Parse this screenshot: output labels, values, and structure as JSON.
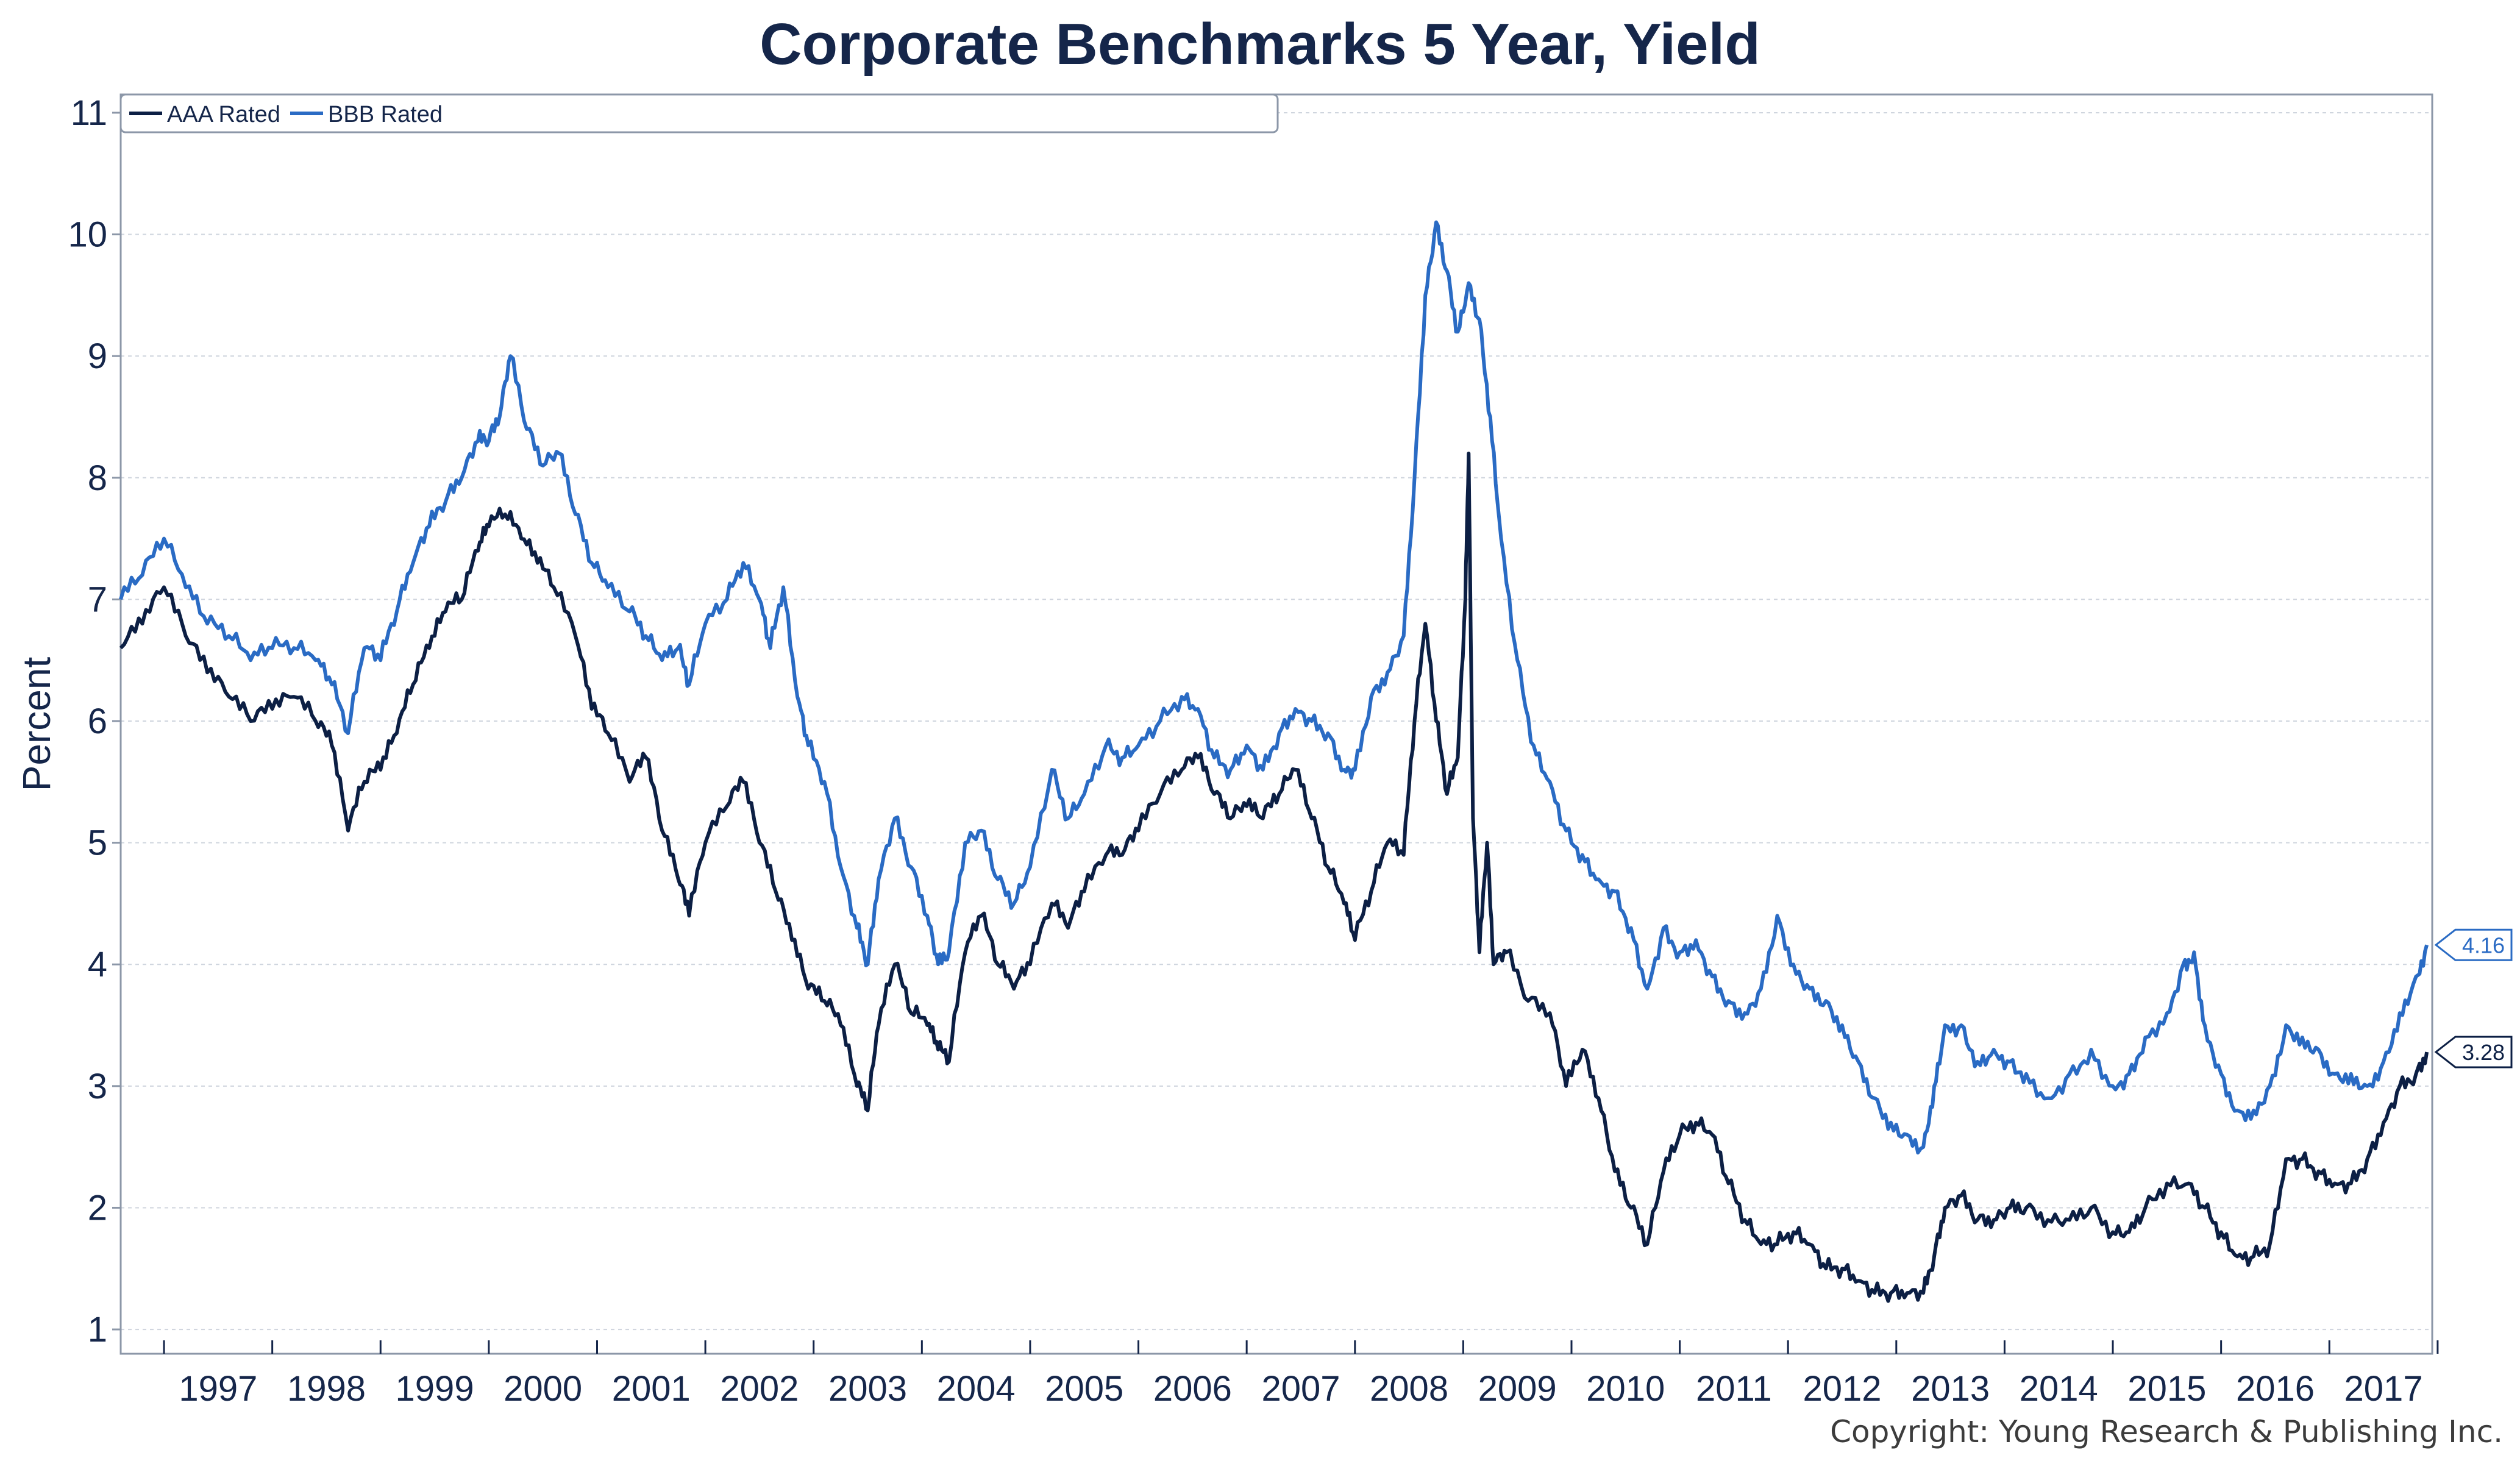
{
  "chart_data": {
    "type": "line",
    "title": "Corporate Benchmarks 5 Year, Yield",
    "ylabel": "Percent",
    "xlabel": "",
    "ylim": [
      1,
      11
    ],
    "xlim": [
      1996.6,
      2017.95
    ],
    "y_ticks": [
      1,
      2,
      3,
      4,
      5,
      6,
      7,
      8,
      9,
      10,
      11
    ],
    "x_tick_labels": [
      "1997",
      "1998",
      "1999",
      "2000",
      "2001",
      "2002",
      "2003",
      "2004",
      "2005",
      "2006",
      "2007",
      "2008",
      "2009",
      "2010",
      "2011",
      "2012",
      "2013",
      "2014",
      "2015",
      "2016",
      "2017"
    ],
    "grid": "horizontal dotted",
    "legend": "top-left",
    "series": [
      {
        "name": "AAA Rated",
        "color": "#0c1f44",
        "end_label": "3.28",
        "points": [
          [
            1996.6,
            6.6
          ],
          [
            1996.8,
            6.8
          ],
          [
            1997.0,
            7.1
          ],
          [
            1997.2,
            6.7
          ],
          [
            1997.4,
            6.4
          ],
          [
            1997.6,
            6.2
          ],
          [
            1997.8,
            6.0
          ],
          [
            1998.0,
            6.1
          ],
          [
            1998.2,
            6.2
          ],
          [
            1998.4,
            6.0
          ],
          [
            1998.55,
            5.8
          ],
          [
            1998.7,
            5.1
          ],
          [
            1998.85,
            5.5
          ],
          [
            1999.0,
            5.6
          ],
          [
            1999.15,
            5.9
          ],
          [
            1999.3,
            6.3
          ],
          [
            1999.45,
            6.6
          ],
          [
            1999.6,
            6.9
          ],
          [
            1999.75,
            7.0
          ],
          [
            1999.9,
            7.4
          ],
          [
            2000.0,
            7.6
          ],
          [
            2000.15,
            7.7
          ],
          [
            2000.3,
            7.5
          ],
          [
            2000.45,
            7.3
          ],
          [
            2000.6,
            7.1
          ],
          [
            2000.8,
            6.7
          ],
          [
            2000.95,
            6.1
          ],
          [
            2001.1,
            5.9
          ],
          [
            2001.3,
            5.5
          ],
          [
            2001.45,
            5.7
          ],
          [
            2001.6,
            5.1
          ],
          [
            2001.75,
            4.7
          ],
          [
            2001.85,
            4.4
          ],
          [
            2002.0,
            5.0
          ],
          [
            2002.2,
            5.3
          ],
          [
            2002.35,
            5.5
          ],
          [
            2002.5,
            5.0
          ],
          [
            2002.65,
            4.6
          ],
          [
            2002.8,
            4.2
          ],
          [
            2002.95,
            3.8
          ],
          [
            2003.1,
            3.7
          ],
          [
            2003.25,
            3.5
          ],
          [
            2003.4,
            3.0
          ],
          [
            2003.5,
            2.8
          ],
          [
            2003.6,
            3.5
          ],
          [
            2003.75,
            4.0
          ],
          [
            2003.9,
            3.6
          ],
          [
            2004.05,
            3.5
          ],
          [
            2004.15,
            3.3
          ],
          [
            2004.25,
            3.2
          ],
          [
            2004.4,
            4.1
          ],
          [
            2004.55,
            4.4
          ],
          [
            2004.7,
            4.0
          ],
          [
            2004.85,
            3.8
          ],
          [
            2005.0,
            4.0
          ],
          [
            2005.2,
            4.5
          ],
          [
            2005.35,
            4.3
          ],
          [
            2005.5,
            4.6
          ],
          [
            2005.7,
            4.9
          ],
          [
            2005.85,
            4.9
          ],
          [
            2006.0,
            5.1
          ],
          [
            2006.2,
            5.4
          ],
          [
            2006.4,
            5.6
          ],
          [
            2006.55,
            5.7
          ],
          [
            2006.7,
            5.4
          ],
          [
            2006.85,
            5.2
          ],
          [
            2007.0,
            5.3
          ],
          [
            2007.15,
            5.2
          ],
          [
            2007.3,
            5.4
          ],
          [
            2007.45,
            5.6
          ],
          [
            2007.6,
            5.2
          ],
          [
            2007.75,
            4.8
          ],
          [
            2007.9,
            4.5
          ],
          [
            2008.0,
            4.2
          ],
          [
            2008.15,
            4.6
          ],
          [
            2008.3,
            5.0
          ],
          [
            2008.45,
            4.9
          ],
          [
            2008.55,
            6.0
          ],
          [
            2008.65,
            6.8
          ],
          [
            2008.75,
            6.0
          ],
          [
            2008.85,
            5.4
          ],
          [
            2008.95,
            5.7
          ],
          [
            2009.02,
            7.0
          ],
          [
            2009.05,
            8.2
          ],
          [
            2009.09,
            5.2
          ],
          [
            2009.15,
            4.1
          ],
          [
            2009.22,
            5.0
          ],
          [
            2009.28,
            4.0
          ],
          [
            2009.4,
            4.1
          ],
          [
            2009.6,
            3.7
          ],
          [
            2009.8,
            3.6
          ],
          [
            2009.95,
            3.0
          ],
          [
            2010.1,
            3.3
          ],
          [
            2010.25,
            2.9
          ],
          [
            2010.4,
            2.3
          ],
          [
            2010.55,
            2.0
          ],
          [
            2010.7,
            1.7
          ],
          [
            2010.85,
            2.3
          ],
          [
            2011.0,
            2.6
          ],
          [
            2011.15,
            2.7
          ],
          [
            2011.3,
            2.6
          ],
          [
            2011.45,
            2.2
          ],
          [
            2011.6,
            1.9
          ],
          [
            2011.75,
            1.7
          ],
          [
            2011.9,
            1.7
          ],
          [
            2012.05,
            1.8
          ],
          [
            2012.2,
            1.7
          ],
          [
            2012.35,
            1.5
          ],
          [
            2012.5,
            1.5
          ],
          [
            2012.65,
            1.4
          ],
          [
            2012.8,
            1.3
          ],
          [
            2012.95,
            1.3
          ],
          [
            2013.1,
            1.3
          ],
          [
            2013.25,
            1.3
          ],
          [
            2013.35,
            1.6
          ],
          [
            2013.45,
            2.0
          ],
          [
            2013.6,
            2.1
          ],
          [
            2013.75,
            1.9
          ],
          [
            2013.9,
            1.9
          ],
          [
            2014.05,
            2.0
          ],
          [
            2014.2,
            2.0
          ],
          [
            2014.4,
            1.9
          ],
          [
            2014.6,
            1.9
          ],
          [
            2014.8,
            2.0
          ],
          [
            2015.0,
            1.8
          ],
          [
            2015.15,
            1.8
          ],
          [
            2015.3,
            2.0
          ],
          [
            2015.5,
            2.2
          ],
          [
            2015.7,
            2.2
          ],
          [
            2015.85,
            2.0
          ],
          [
            2016.0,
            1.8
          ],
          [
            2016.15,
            1.6
          ],
          [
            2016.3,
            1.6
          ],
          [
            2016.45,
            1.7
          ],
          [
            2016.6,
            2.4
          ],
          [
            2016.75,
            2.4
          ],
          [
            2016.9,
            2.3
          ],
          [
            2017.05,
            2.2
          ],
          [
            2017.2,
            2.2
          ],
          [
            2017.35,
            2.4
          ],
          [
            2017.5,
            2.7
          ],
          [
            2017.65,
            3.0
          ],
          [
            2017.8,
            3.1
          ],
          [
            2017.9,
            3.28
          ]
        ]
      },
      {
        "name": "BBB Rated",
        "color": "#2a6bc4",
        "end_label": "4.16",
        "points": [
          [
            1996.6,
            7.0
          ],
          [
            1996.8,
            7.2
          ],
          [
            1997.0,
            7.5
          ],
          [
            1997.2,
            7.1
          ],
          [
            1997.4,
            6.8
          ],
          [
            1997.6,
            6.7
          ],
          [
            1997.8,
            6.5
          ],
          [
            1998.0,
            6.6
          ],
          [
            1998.2,
            6.6
          ],
          [
            1998.4,
            6.5
          ],
          [
            1998.55,
            6.3
          ],
          [
            1998.7,
            5.9
          ],
          [
            1998.85,
            6.6
          ],
          [
            1999.0,
            6.5
          ],
          [
            1999.15,
            6.9
          ],
          [
            1999.3,
            7.3
          ],
          [
            1999.45,
            7.6
          ],
          [
            1999.6,
            7.8
          ],
          [
            1999.75,
            8.0
          ],
          [
            1999.9,
            8.3
          ],
          [
            2000.0,
            8.3
          ],
          [
            2000.1,
            8.5
          ],
          [
            2000.2,
            9.0
          ],
          [
            2000.35,
            8.4
          ],
          [
            2000.5,
            8.1
          ],
          [
            2000.65,
            8.2
          ],
          [
            2000.8,
            7.7
          ],
          [
            2000.95,
            7.3
          ],
          [
            2001.1,
            7.1
          ],
          [
            2001.3,
            6.9
          ],
          [
            2001.45,
            6.7
          ],
          [
            2001.6,
            6.5
          ],
          [
            2001.75,
            6.6
          ],
          [
            2001.85,
            6.3
          ],
          [
            2002.0,
            6.8
          ],
          [
            2002.2,
            7.0
          ],
          [
            2002.35,
            7.3
          ],
          [
            2002.5,
            7.0
          ],
          [
            2002.6,
            6.6
          ],
          [
            2002.72,
            7.1
          ],
          [
            2002.85,
            6.2
          ],
          [
            2002.95,
            5.8
          ],
          [
            2003.1,
            5.5
          ],
          [
            2003.25,
            4.8
          ],
          [
            2003.4,
            4.3
          ],
          [
            2003.5,
            4.0
          ],
          [
            2003.6,
            4.7
          ],
          [
            2003.75,
            5.2
          ],
          [
            2003.9,
            4.8
          ],
          [
            2004.05,
            4.4
          ],
          [
            2004.15,
            4.0
          ],
          [
            2004.25,
            4.1
          ],
          [
            2004.4,
            5.0
          ],
          [
            2004.55,
            5.1
          ],
          [
            2004.7,
            4.7
          ],
          [
            2004.85,
            4.5
          ],
          [
            2005.0,
            4.8
          ],
          [
            2005.2,
            5.6
          ],
          [
            2005.35,
            5.2
          ],
          [
            2005.5,
            5.4
          ],
          [
            2005.7,
            5.8
          ],
          [
            2005.85,
            5.7
          ],
          [
            2006.0,
            5.8
          ],
          [
            2006.2,
            6.0
          ],
          [
            2006.4,
            6.2
          ],
          [
            2006.55,
            6.1
          ],
          [
            2006.7,
            5.7
          ],
          [
            2006.85,
            5.6
          ],
          [
            2007.0,
            5.8
          ],
          [
            2007.15,
            5.6
          ],
          [
            2007.3,
            5.9
          ],
          [
            2007.45,
            6.1
          ],
          [
            2007.6,
            6.0
          ],
          [
            2007.75,
            5.9
          ],
          [
            2007.9,
            5.6
          ],
          [
            2008.0,
            5.6
          ],
          [
            2008.15,
            6.2
          ],
          [
            2008.3,
            6.4
          ],
          [
            2008.45,
            6.7
          ],
          [
            2008.55,
            8.0
          ],
          [
            2008.65,
            9.5
          ],
          [
            2008.75,
            10.1
          ],
          [
            2008.85,
            9.7
          ],
          [
            2008.95,
            9.2
          ],
          [
            2009.05,
            9.6
          ],
          [
            2009.15,
            9.3
          ],
          [
            2009.25,
            8.5
          ],
          [
            2009.35,
            7.5
          ],
          [
            2009.5,
            6.5
          ],
          [
            2009.65,
            5.8
          ],
          [
            2009.8,
            5.5
          ],
          [
            2009.95,
            5.1
          ],
          [
            2010.1,
            4.9
          ],
          [
            2010.25,
            4.7
          ],
          [
            2010.4,
            4.6
          ],
          [
            2010.55,
            4.3
          ],
          [
            2010.7,
            3.8
          ],
          [
            2010.85,
            4.3
          ],
          [
            2011.0,
            4.1
          ],
          [
            2011.15,
            4.2
          ],
          [
            2011.3,
            3.9
          ],
          [
            2011.45,
            3.7
          ],
          [
            2011.6,
            3.6
          ],
          [
            2011.75,
            3.8
          ],
          [
            2011.9,
            4.4
          ],
          [
            2012.05,
            4.0
          ],
          [
            2012.2,
            3.8
          ],
          [
            2012.35,
            3.7
          ],
          [
            2012.5,
            3.5
          ],
          [
            2012.65,
            3.2
          ],
          [
            2012.8,
            2.9
          ],
          [
            2012.95,
            2.7
          ],
          [
            2013.1,
            2.6
          ],
          [
            2013.25,
            2.5
          ],
          [
            2013.35,
            3.0
          ],
          [
            2013.45,
            3.5
          ],
          [
            2013.6,
            3.5
          ],
          [
            2013.75,
            3.2
          ],
          [
            2013.9,
            3.3
          ],
          [
            2014.05,
            3.2
          ],
          [
            2014.2,
            3.1
          ],
          [
            2014.4,
            2.9
          ],
          [
            2014.6,
            3.1
          ],
          [
            2014.8,
            3.3
          ],
          [
            2015.0,
            3.0
          ],
          [
            2015.15,
            3.1
          ],
          [
            2015.3,
            3.4
          ],
          [
            2015.5,
            3.6
          ],
          [
            2015.65,
            4.0
          ],
          [
            2015.75,
            4.1
          ],
          [
            2015.85,
            3.5
          ],
          [
            2016.0,
            3.1
          ],
          [
            2016.15,
            2.8
          ],
          [
            2016.3,
            2.8
          ],
          [
            2016.45,
            3.0
          ],
          [
            2016.6,
            3.5
          ],
          [
            2016.75,
            3.4
          ],
          [
            2016.9,
            3.3
          ],
          [
            2017.05,
            3.1
          ],
          [
            2017.2,
            3.1
          ],
          [
            2017.35,
            3.0
          ],
          [
            2017.5,
            3.2
          ],
          [
            2017.65,
            3.6
          ],
          [
            2017.8,
            3.9
          ],
          [
            2017.9,
            4.16
          ]
        ]
      }
    ]
  },
  "copyright": "Copyright: Young Research & Publishing Inc."
}
